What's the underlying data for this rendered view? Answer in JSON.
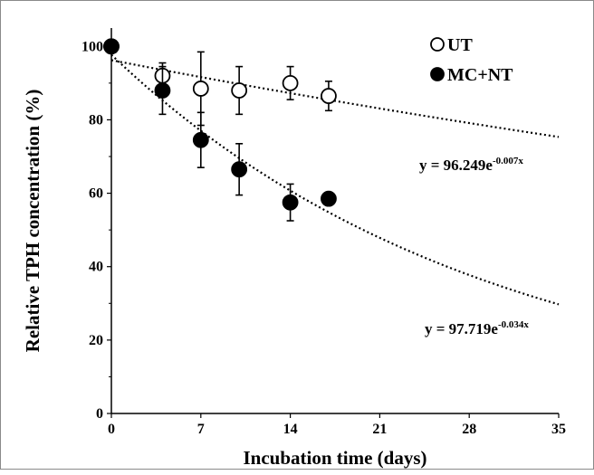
{
  "chart_data": {
    "type": "scatter",
    "title": "",
    "xlabel": "Incubation time (days)",
    "ylabel": "Relative TPH concentration (%)",
    "xlim": [
      0,
      35
    ],
    "ylim": [
      0,
      105
    ],
    "x_ticks": [
      0,
      7,
      14,
      21,
      28,
      35
    ],
    "y_ticks": [
      0,
      20,
      40,
      60,
      80,
      100
    ],
    "grid": false,
    "legend_position": "top-right",
    "series": [
      {
        "name": "UT",
        "marker": "open-circle",
        "color": "#000000",
        "x": [
          0,
          4,
          7,
          10,
          14,
          17
        ],
        "y": [
          100,
          92,
          88.5,
          88,
          90,
          86.5
        ],
        "error": [
          0,
          3.5,
          10,
          6.5,
          4.5,
          4
        ],
        "fit": {
          "a": 96.249,
          "k": -0.007,
          "label": "y = 96.249e",
          "exponent": "-0.007x"
        }
      },
      {
        "name": "MC+NT",
        "marker": "filled-circle",
        "color": "#000000",
        "x": [
          0,
          4,
          7,
          10,
          14,
          17
        ],
        "y": [
          100,
          88,
          74.5,
          66.5,
          57.5,
          58.5
        ],
        "error": [
          0,
          6.5,
          7.5,
          7,
          5,
          0
        ],
        "fit": {
          "a": 97.719,
          "k": -0.034,
          "label": "y = 97.719e",
          "exponent": "-0.034x"
        }
      }
    ]
  }
}
